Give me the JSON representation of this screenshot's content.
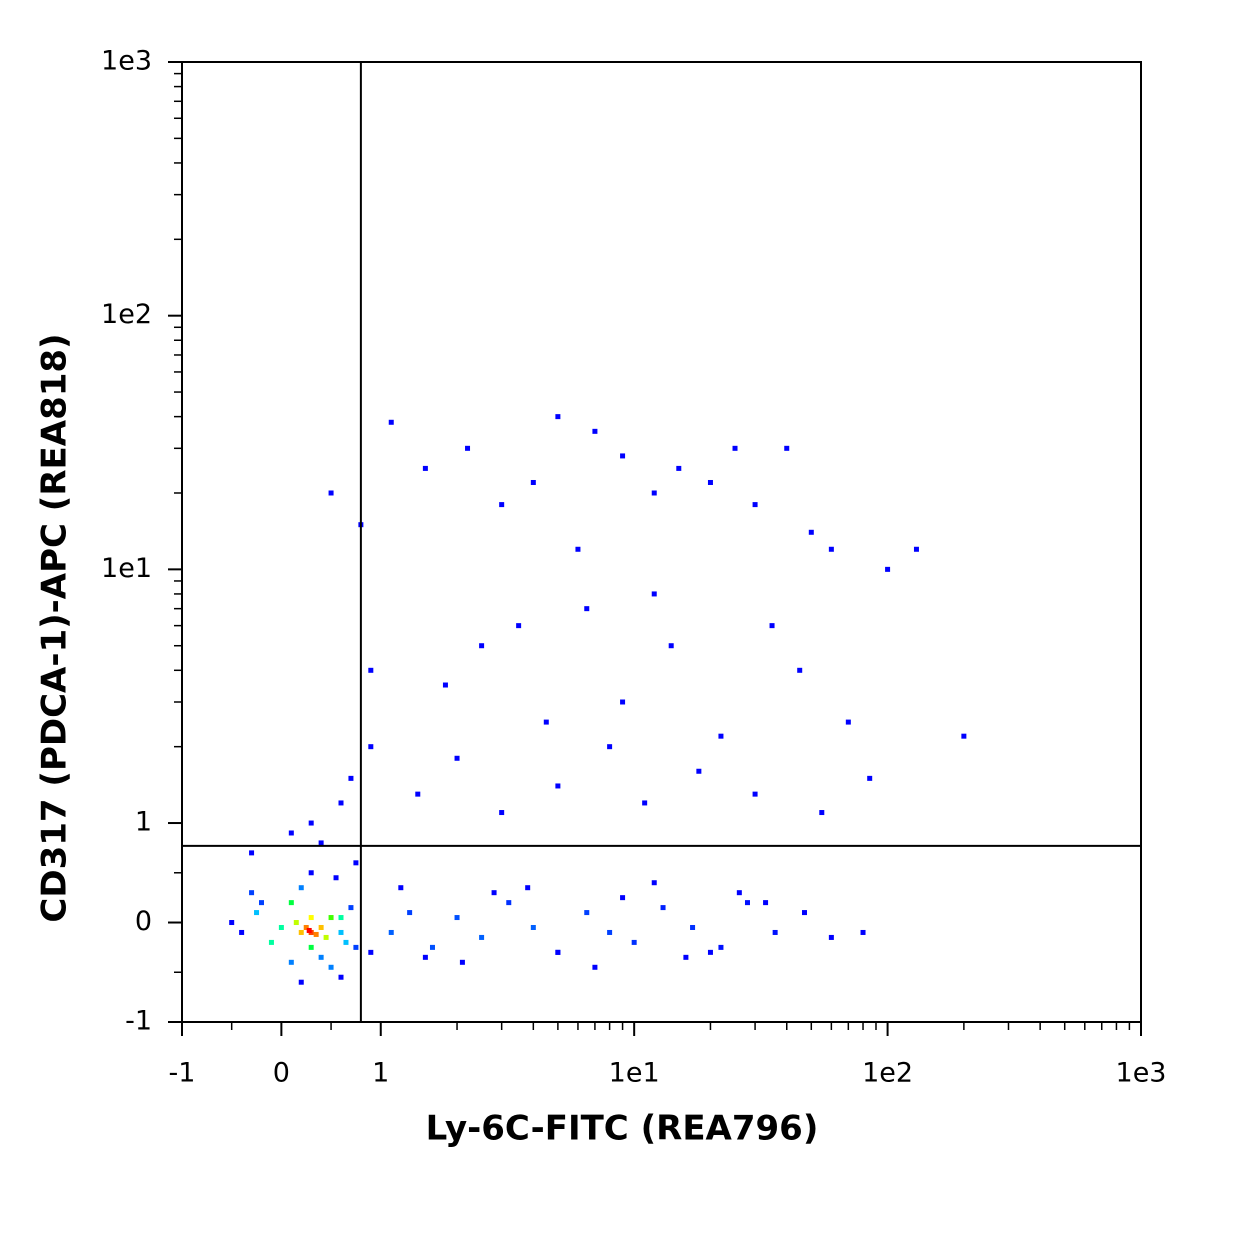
{
  "chart_data": {
    "type": "scatter",
    "x_label": "Ly-6C-FITC (REA796)",
    "y_label": "CD317 (PDCA-1)-APC (REA818)",
    "xscale": "biexponential",
    "yscale": "biexponential",
    "xlim": [
      -1,
      1000
    ],
    "ylim": [
      -1,
      1000
    ],
    "xticks": [
      -1,
      0,
      1,
      {
        "value": 10,
        "label": "1e1"
      },
      {
        "value": 100,
        "label": "1e2"
      },
      {
        "value": 1000,
        "label": "1e3"
      }
    ],
    "yticks": [
      -1,
      0,
      1,
      {
        "value": 10,
        "label": "1e1"
      },
      {
        "value": 100,
        "label": "1e2"
      },
      {
        "value": 1000,
        "label": "1e3"
      }
    ],
    "xminor": [
      -0.5,
      0.5,
      2,
      3,
      4,
      5,
      6,
      7,
      8,
      9,
      20,
      30,
      40,
      50,
      60,
      70,
      80,
      90,
      200,
      300,
      400,
      500,
      600,
      700,
      800,
      900
    ],
    "yminor": [
      -0.5,
      0.5,
      2,
      3,
      4,
      5,
      6,
      7,
      8,
      9,
      20,
      30,
      40,
      50,
      60,
      70,
      80,
      90,
      200,
      300,
      400,
      500,
      600,
      700,
      800,
      900
    ],
    "quadrant_x": 0.8,
    "quadrant_y": 0.77,
    "marker_size": 5,
    "x": [
      0.5,
      0.8,
      1.1,
      1.5,
      2.2,
      3,
      4,
      5,
      6,
      7,
      9,
      12,
      15,
      20,
      25,
      30,
      40,
      50,
      60,
      12,
      3.5,
      0.9,
      1.8,
      2.5,
      4.5,
      6.5,
      9,
      14,
      22,
      35,
      45,
      70,
      100,
      130,
      200,
      0.6,
      0.3,
      0.7,
      0.9,
      1.4,
      2,
      3,
      5,
      8,
      11,
      18,
      30,
      55,
      85,
      -0.3,
      0.1,
      0.4,
      0.75,
      1.1,
      1.3,
      1.6,
      2,
      2.5,
      3.2,
      4,
      5,
      6.5,
      8,
      10,
      13,
      17,
      22,
      28,
      36,
      47,
      60,
      80,
      1.5,
      2.8,
      5,
      9,
      16,
      26,
      1.2,
      2.1,
      3.8,
      7,
      12,
      20,
      33,
      -0.5,
      0.2,
      0.6,
      -0.4,
      0.9,
      0.3,
      0.55,
      -0.2,
      0.7,
      0.1,
      0.5,
      0.2,
      0.4,
      -0.3,
      0.75,
      0.6,
      -0.25,
      0.65,
      -0.1,
      0.0,
      0.6,
      0.1,
      0.3,
      0.5,
      0.15,
      0.45,
      0.2,
      0.4,
      0.3,
      0.3,
      0.25,
      0.35,
      0.3,
      0.28
    ],
    "y": [
      20,
      15,
      38,
      25,
      30,
      18,
      22,
      40,
      12,
      35,
      28,
      20,
      25,
      22,
      30,
      18,
      30,
      14,
      12,
      8,
      6,
      4,
      3.5,
      5,
      2.5,
      7,
      3,
      5,
      2.2,
      6,
      4,
      2.5,
      10,
      12,
      2.2,
      1.2,
      1,
      1.5,
      2,
      1.3,
      1.8,
      1.1,
      1.4,
      2,
      1.2,
      1.6,
      1.3,
      1.1,
      1.5,
      0.7,
      0.9,
      0.8,
      0.6,
      -0.1,
      0.1,
      -0.25,
      0.05,
      -0.15,
      0.2,
      -0.05,
      -0.3,
      0.1,
      -0.1,
      -0.2,
      0.15,
      -0.05,
      -0.25,
      0.2,
      -0.1,
      0.1,
      -0.15,
      -0.1,
      -0.35,
      0.3,
      -0.3,
      0.25,
      -0.35,
      0.3,
      0.35,
      -0.4,
      0.35,
      -0.45,
      0.4,
      -0.3,
      0.2,
      0.0,
      -0.6,
      -0.55,
      -0.1,
      -0.3,
      0.5,
      0.45,
      0.2,
      0.15,
      -0.4,
      -0.45,
      0.35,
      -0.35,
      0.3,
      -0.25,
      -0.1,
      0.1,
      -0.2,
      -0.2,
      -0.05,
      0.05,
      0.2,
      -0.25,
      0.05,
      0.0,
      -0.15,
      -0.1,
      -0.05,
      -0.1,
      0.05,
      -0.05,
      -0.12,
      -0.1,
      -0.08
    ],
    "colors": [
      "#0000ff",
      "#0000ff",
      "#0000ff",
      "#0000ff",
      "#0000ff",
      "#0000ff",
      "#0000ff",
      "#0000ff",
      "#0000ff",
      "#0000ff",
      "#0000ff",
      "#0000ff",
      "#0000ff",
      "#0000ff",
      "#0000ff",
      "#0000ff",
      "#0000ff",
      "#0000ff",
      "#0000ff",
      "#0000ff",
      "#0000ff",
      "#0000ff",
      "#0000ff",
      "#0000ff",
      "#0000ff",
      "#0000ff",
      "#0000ff",
      "#0000ff",
      "#0000ff",
      "#0000ff",
      "#0000ff",
      "#0000ff",
      "#0000ff",
      "#0000ff",
      "#0000ff",
      "#0000ff",
      "#0000ff",
      "#0000ff",
      "#0000ff",
      "#0000ff",
      "#0000ff",
      "#0000ff",
      "#0000ff",
      "#0000ff",
      "#0000ff",
      "#0000ff",
      "#0000ff",
      "#0000ff",
      "#0000ff",
      "#0000ff",
      "#0000ff",
      "#0000ff",
      "#0000ff",
      "#0060ff",
      "#0040ff",
      "#0050ff",
      "#0050ff",
      "#0060ff",
      "#0030ff",
      "#0060ff",
      "#0020ff",
      "#0040ff",
      "#0040ff",
      "#0030ff",
      "#0020ff",
      "#0030ff",
      "#0010ff",
      "#0010ff",
      "#0010ff",
      "#0000ff",
      "#0000ff",
      "#0000ff",
      "#0000ff",
      "#0000ff",
      "#0000ff",
      "#0000ff",
      "#0000ff",
      "#0000ff",
      "#0000ff",
      "#0000ff",
      "#0000ff",
      "#0000ff",
      "#0000ff",
      "#0000ff",
      "#0000ff",
      "#0000ff",
      "#0000ff",
      "#0000ff",
      "#0000ff",
      "#0000ff",
      "#0000ff",
      "#0000ff",
      "#0040ff",
      "#0040ff",
      "#0080ff",
      "#0080ff",
      "#0080ff",
      "#0080ff",
      "#0040ff",
      "#0040ff",
      "#00c0ff",
      "#00c0ff",
      "#00c0ff",
      "#00ffa0",
      "#00ffa0",
      "#00ffa0",
      "#00ff40",
      "#00ff40",
      "#40ff00",
      "#c0ff00",
      "#c0ff00",
      "#ffc000",
      "#ffc000",
      "#ffff00",
      "#ffff00",
      "#ff8000",
      "#ff8000",
      "#ff4000",
      "#ff0000"
    ]
  }
}
